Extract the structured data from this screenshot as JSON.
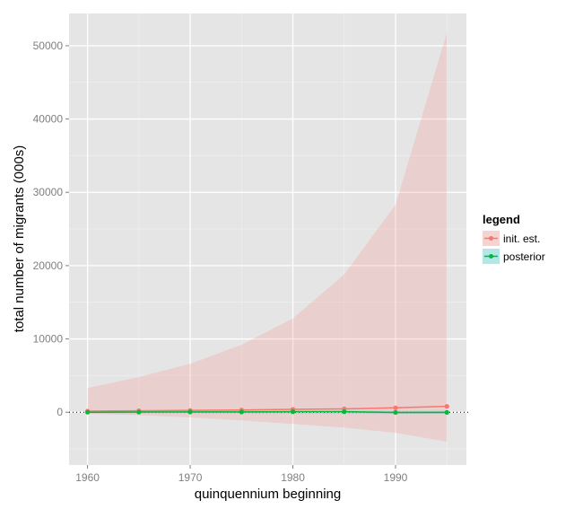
{
  "chart_data": {
    "type": "line",
    "xlabel": "quinquennium beginning",
    "ylabel": "total number of migrants (000s)",
    "x": [
      1960,
      1965,
      1970,
      1975,
      1980,
      1985,
      1990,
      1995
    ],
    "xlim": [
      1958.2,
      1996.9
    ],
    "ylim": [
      -7200,
      54400
    ],
    "x_ticks": [
      1960,
      1970,
      1980,
      1990
    ],
    "y_ticks": [
      0,
      10000,
      20000,
      30000,
      40000,
      50000
    ],
    "x_tick_labels": [
      "1960",
      "1970",
      "1980",
      "1990"
    ],
    "y_tick_labels": [
      "0",
      "10000",
      "20000",
      "30000",
      "40000",
      "50000"
    ],
    "zero_line": "dotted",
    "grid": true,
    "legend": {
      "title": "legend",
      "position": "right",
      "items": [
        "init. est.",
        "posterior"
      ]
    },
    "series": [
      {
        "name": "init. est.",
        "color": "#F8766D",
        "band_color": "#F8766D",
        "values": [
          150,
          200,
          250,
          300,
          400,
          450,
          600,
          800
        ],
        "lower": [
          -200,
          -400,
          -700,
          -1100,
          -1600,
          -2100,
          -2800,
          -4000
        ],
        "upper": [
          3300,
          4800,
          6600,
          9200,
          12800,
          18800,
          28300,
          51800
        ]
      },
      {
        "name": "posterior",
        "color": "#00BA38",
        "band_color": "#00BFC4",
        "values": [
          0,
          20,
          40,
          40,
          70,
          70,
          -30,
          -20
        ],
        "lower": [
          -150,
          -150,
          -150,
          -160,
          -170,
          -170,
          -220,
          -220
        ],
        "upper": [
          150,
          170,
          190,
          200,
          230,
          240,
          200,
          200
        ]
      }
    ]
  }
}
